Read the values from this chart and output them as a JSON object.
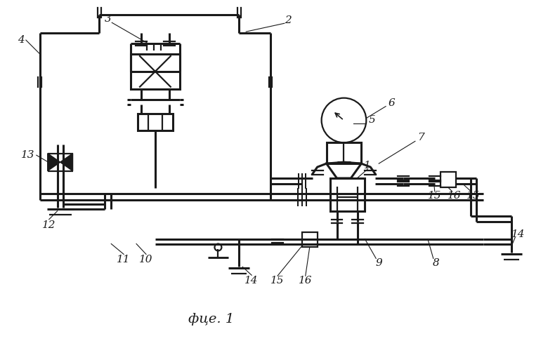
{
  "bg_color": "#ffffff",
  "line_color": "#1a1a1a",
  "lw": 1.6,
  "lw_thick": 2.2,
  "caption": "фце. 1"
}
